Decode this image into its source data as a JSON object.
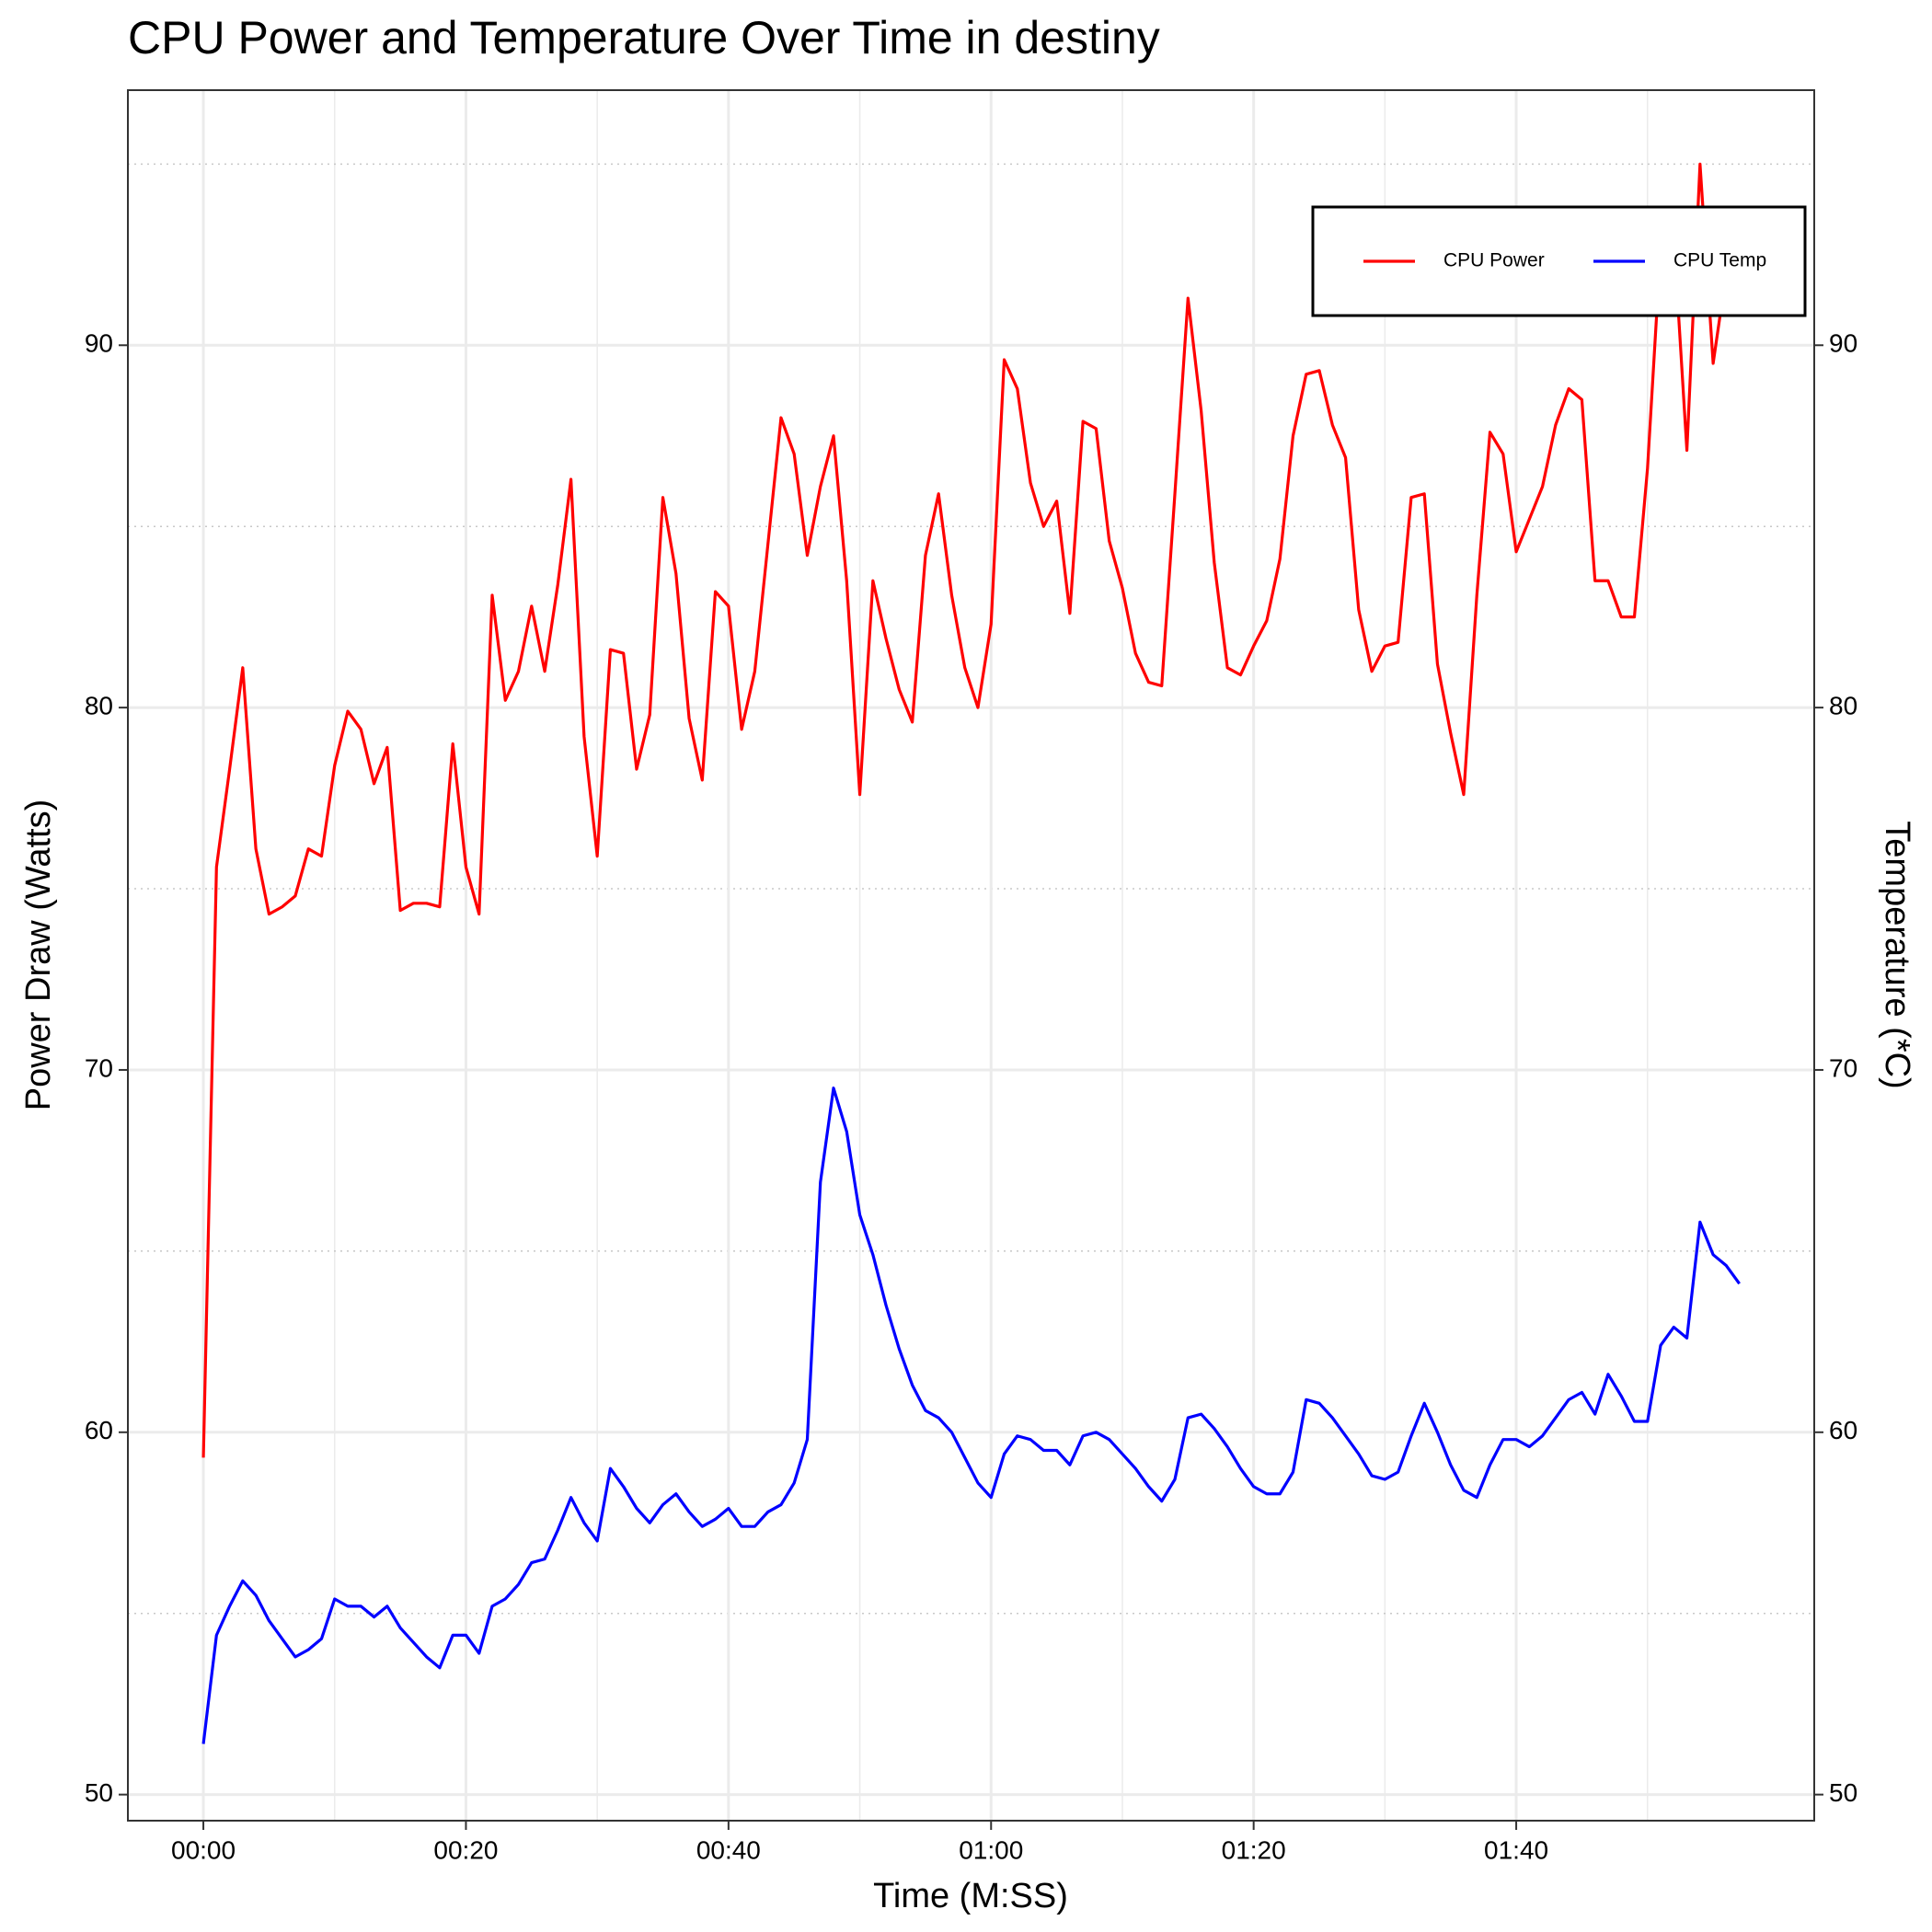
{
  "chart_data": {
    "type": "line",
    "title": "CPU Power and Temperature Over Time in destiny",
    "x_label": "Time (M:SS)",
    "y_label": "Power Draw (Watts)",
    "y2_label": "Temperature (*C)",
    "x": [
      0,
      1,
      2,
      3,
      4,
      5,
      6,
      7,
      8,
      9,
      10,
      11,
      12,
      13,
      14,
      15,
      16,
      17,
      18,
      19,
      20,
      21,
      22,
      23,
      24,
      25,
      26,
      27,
      28,
      29,
      30,
      31,
      32,
      33,
      34,
      35,
      36,
      37,
      38,
      39,
      40,
      41,
      42,
      43,
      44,
      45,
      46,
      47,
      48,
      49,
      50,
      51,
      52,
      53,
      54,
      55,
      56,
      57,
      58,
      59,
      60,
      61,
      62,
      63,
      64,
      65,
      66,
      67,
      68,
      69,
      70,
      71,
      72,
      73,
      74,
      75,
      76,
      77,
      78,
      79,
      80,
      81,
      82,
      83,
      84,
      85,
      86,
      87,
      88,
      89,
      90,
      91,
      92,
      93,
      94,
      95,
      96,
      97,
      98,
      99,
      100,
      101,
      102,
      103,
      104,
      105,
      106,
      107,
      108,
      109,
      110,
      111,
      112,
      113,
      114,
      115,
      116,
      117
    ],
    "series": [
      {
        "name": "CPU Power",
        "color": "#ff0000",
        "axis": "y",
        "values": [
          59.3,
          75.6,
          78.3,
          81.1,
          76.1,
          74.3,
          74.5,
          74.8,
          76.1,
          75.9,
          78.4,
          79.9,
          79.4,
          77.9,
          78.9,
          74.4,
          74.6,
          74.6,
          74.5,
          79.0,
          75.6,
          74.3,
          83.1,
          80.2,
          81.0,
          82.8,
          81.0,
          83.4,
          86.3,
          79.2,
          75.9,
          81.6,
          81.5,
          78.3,
          79.8,
          85.8,
          83.7,
          79.7,
          78.0,
          83.2,
          82.8,
          79.4,
          81.0,
          84.5,
          88.0,
          87.0,
          84.2,
          86.1,
          87.5,
          83.5,
          77.6,
          83.5,
          81.9,
          80.5,
          79.6,
          84.2,
          85.9,
          83.1,
          81.1,
          80.0,
          82.3,
          89.6,
          88.8,
          86.2,
          85.0,
          85.7,
          82.6,
          87.9,
          87.7,
          84.6,
          83.3,
          81.5,
          80.7,
          80.6,
          85.9,
          91.3,
          88.2,
          84.0,
          81.1,
          80.9,
          81.7,
          82.4,
          84.1,
          87.5,
          89.2,
          89.3,
          87.8,
          86.9,
          82.7,
          81.0,
          81.7,
          81.8,
          85.8,
          85.9,
          81.2,
          79.3,
          77.6,
          83.1,
          87.6,
          87.0,
          84.3,
          85.2,
          86.1,
          87.8,
          88.8,
          88.5,
          83.5,
          83.5,
          82.5,
          82.5,
          86.6,
          92.7,
          93.0,
          87.1,
          95.0,
          89.5,
          92.0,
          92.5
        ]
      },
      {
        "name": "CPU Temp",
        "color": "#0000ff",
        "axis": "y2",
        "values": [
          51.4,
          54.4,
          55.2,
          55.9,
          55.5,
          54.8,
          54.3,
          53.8,
          54.0,
          54.3,
          55.4,
          55.2,
          55.2,
          54.9,
          55.2,
          54.6,
          54.2,
          53.8,
          53.5,
          54.4,
          54.4,
          53.9,
          55.2,
          55.4,
          55.8,
          56.4,
          56.5,
          57.3,
          58.2,
          57.5,
          57.0,
          59.0,
          58.5,
          57.9,
          57.5,
          58.0,
          58.3,
          57.8,
          57.4,
          57.6,
          57.9,
          57.4,
          57.4,
          57.8,
          58.0,
          58.6,
          59.8,
          66.9,
          69.5,
          68.3,
          66.0,
          64.9,
          63.5,
          62.3,
          61.3,
          60.6,
          60.4,
          60.0,
          59.3,
          58.6,
          58.2,
          59.4,
          59.9,
          59.8,
          59.5,
          59.5,
          59.1,
          59.9,
          60.0,
          59.8,
          59.4,
          59.0,
          58.5,
          58.1,
          58.7,
          60.4,
          60.5,
          60.1,
          59.6,
          59.0,
          58.5,
          58.3,
          58.3,
          58.9,
          60.9,
          60.8,
          60.4,
          59.9,
          59.4,
          58.8,
          58.7,
          58.9,
          59.9,
          60.8,
          60.0,
          59.1,
          58.4,
          58.2,
          59.1,
          59.8,
          59.8,
          59.6,
          59.9,
          60.4,
          60.9,
          61.1,
          60.5,
          61.6,
          61.0,
          60.3,
          60.3,
          62.4,
          62.9,
          62.6,
          65.8,
          64.9,
          64.6,
          64.1
        ]
      }
    ],
    "xlim": [
      -5.75,
      122.7
    ],
    "xticks": [
      {
        "value": 0,
        "label": "00:00"
      },
      {
        "value": 20,
        "label": "00:20"
      },
      {
        "value": 40,
        "label": "00:40"
      },
      {
        "value": 60,
        "label": "01:00"
      },
      {
        "value": 80,
        "label": "01:20"
      },
      {
        "value": 100,
        "label": "01:40"
      }
    ],
    "x_minor_grid": [
      10,
      30,
      50,
      70,
      90,
      110
    ],
    "ylim": [
      49.28,
      97.04
    ],
    "yticks": [
      50,
      60,
      70,
      80,
      90
    ],
    "y_minor_grid": [
      55,
      65,
      75,
      85,
      95
    ],
    "y2lim": [
      49.28,
      97.04
    ],
    "y2ticks": [
      50,
      60,
      70,
      80,
      90
    ],
    "grid": true,
    "legend": "top-right"
  }
}
